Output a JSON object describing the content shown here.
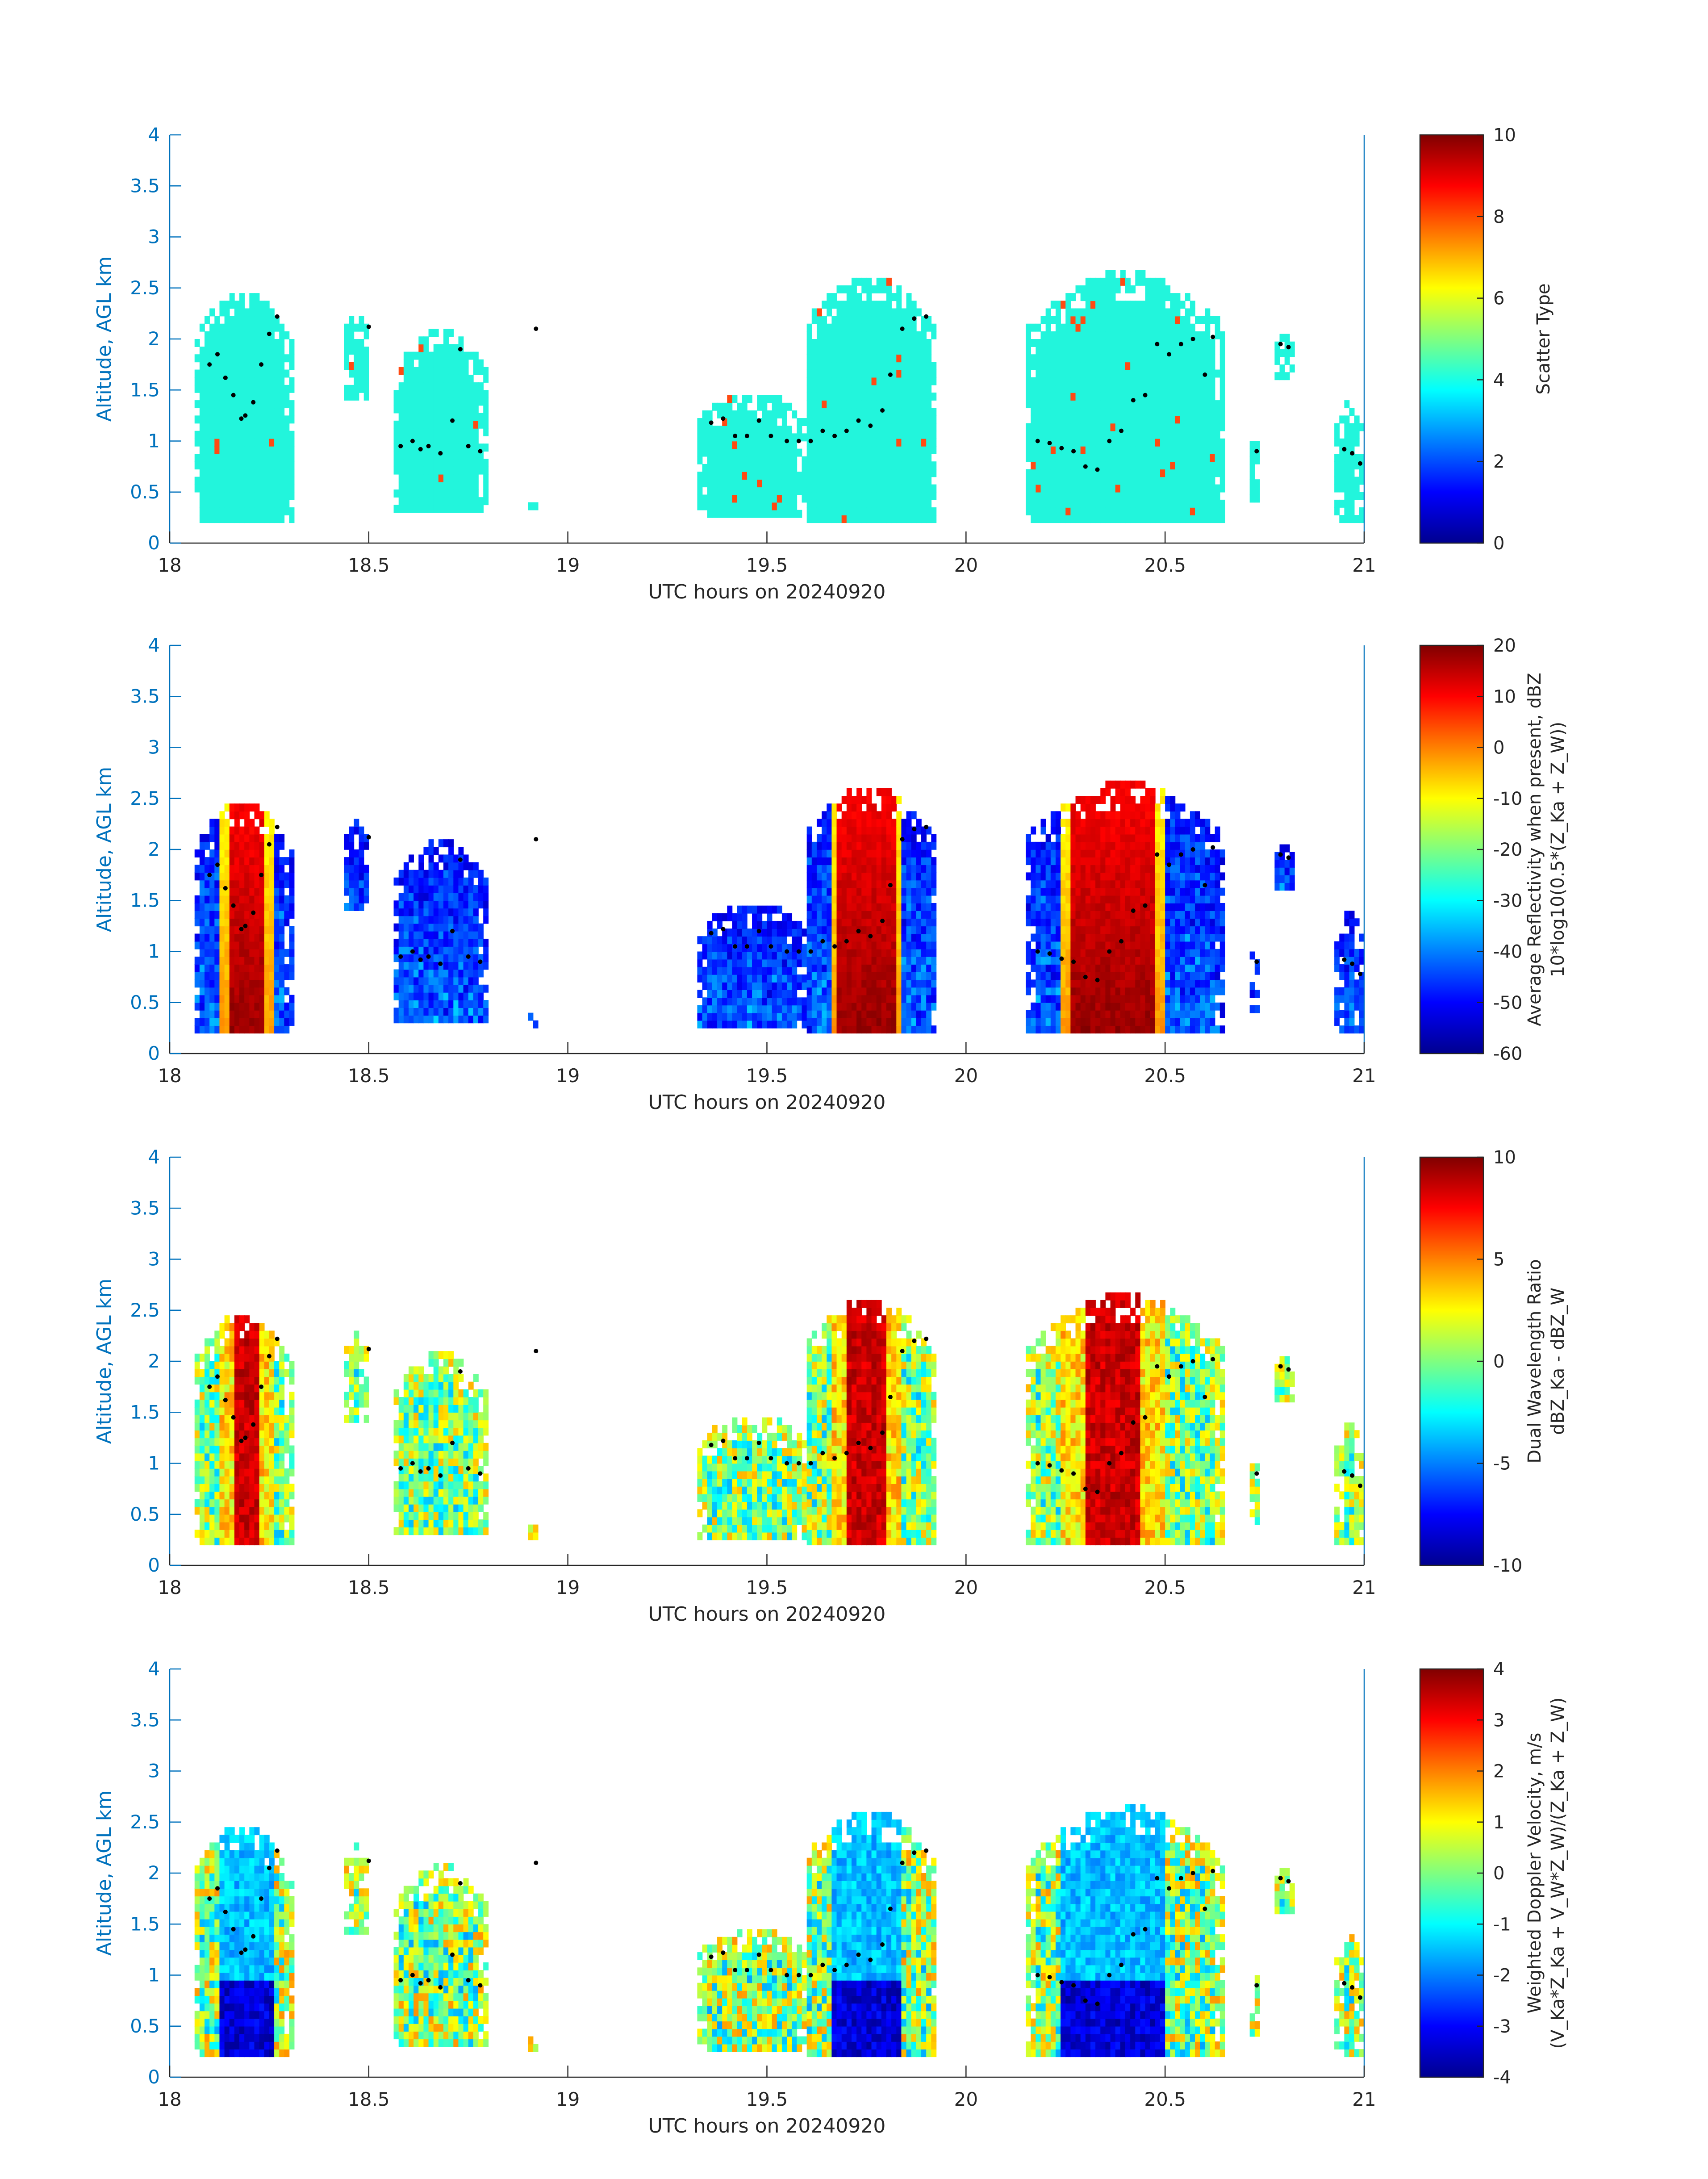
{
  "colors": {
    "axis_blue": "#0072bd",
    "text_dark": "#262626",
    "scatter_cyan": "#22f5dc",
    "scatter_orange": "#ff4a12",
    "dot": "#000000"
  },
  "colormap": "jet",
  "shared": {
    "xlabel": "UTC hours on 20240920",
    "ylabel": "Altitude, AGL km",
    "xlim": [
      18,
      21
    ],
    "ylim": [
      0,
      4
    ],
    "x_ticks": [
      "18",
      "18.5",
      "19",
      "19.5",
      "20",
      "20.5",
      "21"
    ],
    "y_ticks": [
      "0",
      "0.5",
      "1",
      "1.5",
      "2",
      "2.5",
      "3",
      "3.5",
      "4"
    ]
  },
  "chart_data": [
    {
      "type": "heatmap",
      "field": "scatter_type",
      "title": "",
      "xlabel": "UTC hours on 20240920",
      "ylabel": "Altitude, AGL km",
      "xlim": [
        18,
        21
      ],
      "ylim": [
        0,
        4
      ],
      "colorbar": {
        "label_lines": [
          "Scatter Type"
        ],
        "range": [
          0,
          10
        ],
        "ticks": [
          "0",
          "2",
          "4",
          "6",
          "8",
          "10"
        ]
      }
    },
    {
      "type": "heatmap",
      "field": "reflectivity",
      "title": "",
      "xlabel": "UTC hours on 20240920",
      "ylabel": "Altitude, AGL km",
      "xlim": [
        18,
        21
      ],
      "ylim": [
        0,
        4
      ],
      "colorbar": {
        "label_lines": [
          "Average Reflectivity when present, dBZ",
          "10*log10(0.5*(Z_Ka + Z_W))"
        ],
        "range": [
          -60,
          20
        ],
        "ticks": [
          "-60",
          "-50",
          "-40",
          "-30",
          "-20",
          "-10",
          "0",
          "10",
          "20"
        ]
      }
    },
    {
      "type": "heatmap",
      "field": "dwr",
      "title": "",
      "xlabel": "UTC hours on 20240920",
      "ylabel": "Altitude, AGL km",
      "xlim": [
        18,
        21
      ],
      "ylim": [
        0,
        4
      ],
      "colorbar": {
        "label_lines": [
          "Dual Wavelength Ratio",
          "dBZ_Ka - dBZ_W"
        ],
        "range": [
          -10,
          10
        ],
        "ticks": [
          "-10",
          "-5",
          "0",
          "5",
          "10"
        ]
      }
    },
    {
      "type": "heatmap",
      "field": "velocity",
      "title": "",
      "xlabel": "UTC hours on 20240920",
      "ylabel": "Altitude, AGL km",
      "xlim": [
        18,
        21
      ],
      "ylim": [
        0,
        4
      ],
      "colorbar": {
        "label_lines": [
          "Weighted Doppler Velocity, m/s",
          "(V_Ka*Z_Ka + V_W*Z_W)/(Z_Ka + Z_W)"
        ],
        "range": [
          -4,
          4
        ],
        "ticks": [
          "-4",
          "-3",
          "-2",
          "-1",
          "0",
          "1",
          "2",
          "3",
          "4"
        ]
      }
    }
  ],
  "cloud_cells": [
    {
      "x0": 18.06,
      "x1": 18.31,
      "bottom": 0.2,
      "top": 2.45,
      "core": [
        18.13,
        18.26
      ]
    },
    {
      "x0": 18.44,
      "x1": 18.5,
      "bottom": 1.4,
      "top": 2.25,
      "core": null
    },
    {
      "x0": 18.56,
      "x1": 18.8,
      "bottom": 0.3,
      "top": 2.05,
      "core": null
    },
    {
      "x0": 18.9,
      "x1": 18.93,
      "bottom": 0.25,
      "top": 0.4,
      "core": null
    },
    {
      "x0": 19.33,
      "x1": 19.6,
      "bottom": 0.25,
      "top": 1.45,
      "core": null
    },
    {
      "x0": 19.58,
      "x1": 19.93,
      "bottom": 0.2,
      "top": 2.58,
      "core": [
        19.66,
        19.84
      ]
    },
    {
      "x0": 20.15,
      "x1": 20.65,
      "bottom": 0.2,
      "top": 2.62,
      "core": [
        20.24,
        20.5
      ]
    },
    {
      "x0": 20.71,
      "x1": 20.74,
      "bottom": 0.4,
      "top": 1.0,
      "core": null
    },
    {
      "x0": 20.77,
      "x1": 20.82,
      "bottom": 1.6,
      "top": 2.0,
      "core": null
    },
    {
      "x0": 20.93,
      "x1": 21.0,
      "bottom": 0.2,
      "top": 1.35,
      "core": null
    }
  ],
  "cloud_base_dots": [
    [
      18.1,
      1.75
    ],
    [
      18.12,
      1.85
    ],
    [
      18.14,
      1.62
    ],
    [
      18.16,
      1.45
    ],
    [
      18.18,
      1.22
    ],
    [
      18.19,
      1.25
    ],
    [
      18.21,
      1.38
    ],
    [
      18.23,
      1.75
    ],
    [
      18.25,
      2.05
    ],
    [
      18.27,
      2.22
    ],
    [
      18.5,
      2.12
    ],
    [
      18.58,
      0.95
    ],
    [
      18.61,
      1.0
    ],
    [
      18.63,
      0.92
    ],
    [
      18.65,
      0.95
    ],
    [
      18.68,
      0.88
    ],
    [
      18.71,
      1.2
    ],
    [
      18.73,
      1.9
    ],
    [
      18.75,
      0.95
    ],
    [
      18.78,
      0.9
    ],
    [
      18.92,
      2.1
    ],
    [
      19.36,
      1.18
    ],
    [
      19.39,
      1.22
    ],
    [
      19.42,
      1.05
    ],
    [
      19.45,
      1.05
    ],
    [
      19.48,
      1.2
    ],
    [
      19.51,
      1.05
    ],
    [
      19.55,
      1.0
    ],
    [
      19.58,
      1.0
    ],
    [
      19.61,
      1.0
    ],
    [
      19.64,
      1.1
    ],
    [
      19.67,
      1.05
    ],
    [
      19.7,
      1.1
    ],
    [
      19.73,
      1.2
    ],
    [
      19.76,
      1.15
    ],
    [
      19.79,
      1.3
    ],
    [
      19.81,
      1.65
    ],
    [
      19.84,
      2.1
    ],
    [
      19.87,
      2.2
    ],
    [
      19.9,
      2.22
    ],
    [
      20.18,
      1.0
    ],
    [
      20.21,
      0.98
    ],
    [
      20.24,
      0.93
    ],
    [
      20.27,
      0.9
    ],
    [
      20.3,
      0.75
    ],
    [
      20.33,
      0.72
    ],
    [
      20.36,
      1.0
    ],
    [
      20.39,
      1.1
    ],
    [
      20.42,
      1.4
    ],
    [
      20.45,
      1.45
    ],
    [
      20.48,
      1.95
    ],
    [
      20.51,
      1.85
    ],
    [
      20.54,
      1.95
    ],
    [
      20.57,
      2.0
    ],
    [
      20.6,
      1.65
    ],
    [
      20.62,
      2.02
    ],
    [
      20.73,
      0.9
    ],
    [
      20.79,
      1.95
    ],
    [
      20.81,
      1.92
    ],
    [
      20.95,
      0.92
    ],
    [
      20.97,
      0.88
    ],
    [
      20.99,
      0.78
    ]
  ]
}
